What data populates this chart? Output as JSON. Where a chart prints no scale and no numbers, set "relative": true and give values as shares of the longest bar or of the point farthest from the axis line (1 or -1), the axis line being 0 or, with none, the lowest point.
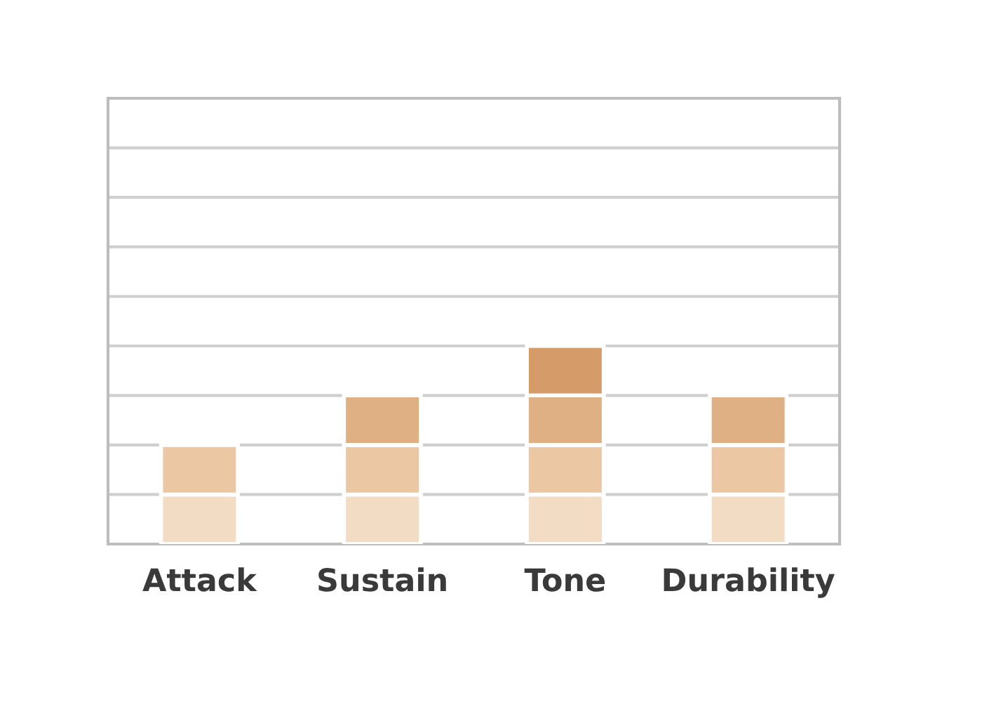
{
  "chart_data": {
    "type": "bar",
    "relative": true,
    "stacked": true,
    "categories": [
      "Attack",
      "Sustain",
      "Tone",
      "Durability"
    ],
    "series": [
      {
        "color": "#f2dcc4",
        "values": [
          0.25,
          0.25,
          0.25,
          0.25
        ]
      },
      {
        "color": "#ebc7a3",
        "values": [
          0.25,
          0.25,
          0.25,
          0.25
        ]
      },
      {
        "color": "#e0b085",
        "values": [
          null,
          0.25,
          0.25,
          0.25
        ]
      },
      {
        "color": "#d59b68",
        "values": [
          null,
          null,
          0.25,
          null
        ]
      }
    ],
    "grid": "y",
    "legend": false
  }
}
